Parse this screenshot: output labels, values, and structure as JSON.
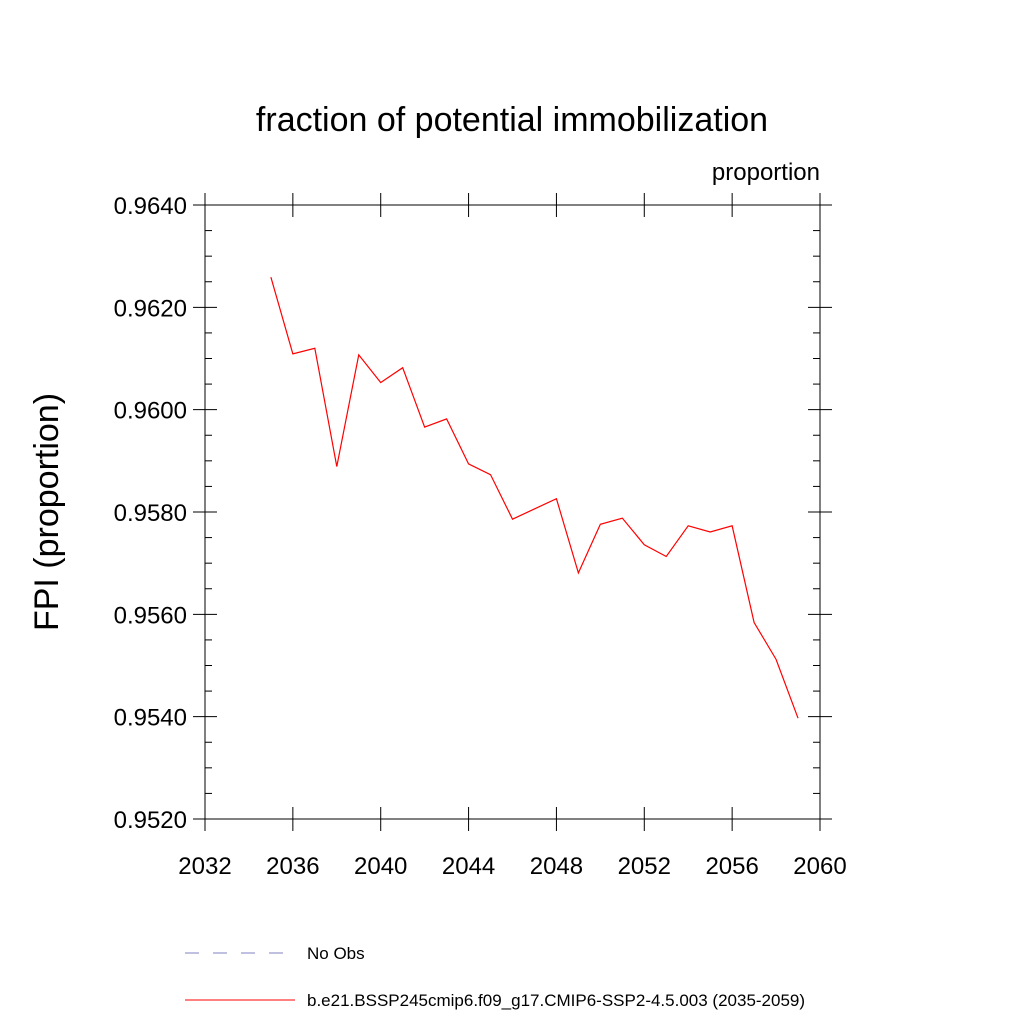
{
  "chart_data": {
    "type": "line",
    "title": "fraction of potential immobilization",
    "units_label": "proportion",
    "ylabel": "FPI  (proportion)",
    "xlabel": "",
    "xlim": [
      2032,
      2060
    ],
    "ylim": [
      0.952,
      0.964
    ],
    "x_ticks": [
      2032,
      2036,
      2040,
      2044,
      2048,
      2052,
      2056,
      2060
    ],
    "x_tick_labels": [
      "2032",
      "2036",
      "2040",
      "2044",
      "2048",
      "2052",
      "2056",
      "2060"
    ],
    "y_ticks": [
      0.952,
      0.954,
      0.956,
      0.958,
      0.96,
      0.962,
      0.964
    ],
    "y_tick_labels": [
      "0.9520",
      "0.9540",
      "0.9560",
      "0.9580",
      "0.9600",
      "0.9620",
      "0.9640"
    ],
    "grid": false,
    "legend_placement": "bottom",
    "legend": [
      {
        "label": "No Obs",
        "color": "#8080c0",
        "dash": "dashed"
      },
      {
        "label": "b.e21.BSSP245cmip6.f09_g17.CMIP6-SSP2-4.5.003 (2035-2059)",
        "color": "#ff0000",
        "dash": "solid"
      }
    ],
    "series": [
      {
        "name": "b.e21.BSSP245cmip6.f09_g17.CMIP6-SSP2-4.5.003 (2035-2059)",
        "color": "#ff0000",
        "x": [
          2035,
          2036,
          2037,
          2038,
          2039,
          2040,
          2041,
          2042,
          2043,
          2044,
          2045,
          2046,
          2047,
          2048,
          2049,
          2050,
          2051,
          2052,
          2053,
          2054,
          2055,
          2056,
          2057,
          2058,
          2059
        ],
        "y": [
          0.96259,
          0.96109,
          0.9612,
          0.95889,
          0.96107,
          0.96053,
          0.96082,
          0.95966,
          0.95982,
          0.95894,
          0.95873,
          0.95786,
          0.95806,
          0.95826,
          0.95681,
          0.95776,
          0.95788,
          0.95736,
          0.95713,
          0.95773,
          0.95761,
          0.95773,
          0.95584,
          0.95512,
          0.95397
        ]
      }
    ]
  }
}
